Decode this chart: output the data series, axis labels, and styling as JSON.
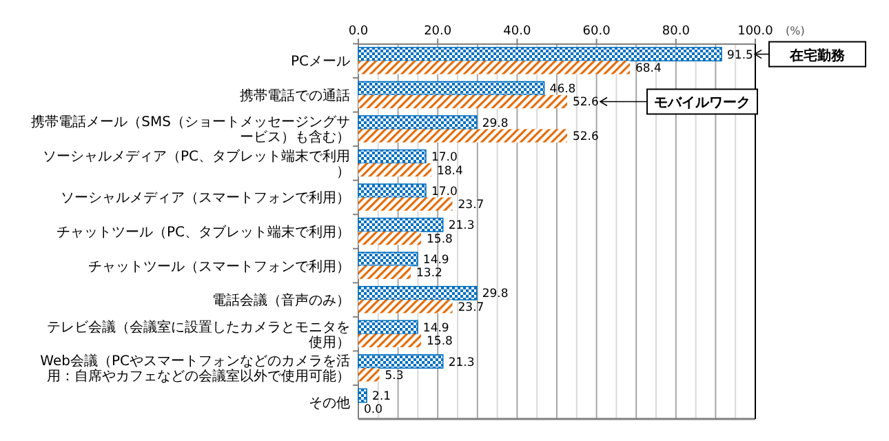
{
  "chart_data": {
    "type": "bar",
    "orientation": "horizontal",
    "xlabel": "(%)",
    "categories": [
      "PCメール",
      "携帯電話での通話",
      "携帯電話メール（SMS（ショートメッセージングサービス）も含む）",
      "ソーシャルメディア（PC、タブレット端末で利用）",
      "ソーシャルメディア（スマートフォンで利用）",
      "チャットツール（PC、タブレット端末で利用）",
      "チャットツール（スマートフォンで利用）",
      "電話会議（音声のみ）",
      "テレビ会議（会議室に設置したカメラとモニタを使用）",
      "Web会議（PCやスマートフォンなどのカメラを活用：自席やカフェなどの会議室以外で使用可能）",
      "その他"
    ],
    "series": [
      {
        "name": "在宅勤務",
        "color": "#0070c0",
        "values": [
          91.5,
          46.8,
          29.8,
          17.0,
          17.0,
          21.3,
          14.9,
          29.8,
          14.9,
          21.3,
          2.1
        ],
        "value_labels": [
          "91.5",
          "46.8",
          "29.8",
          "17.0",
          "17.0",
          "21.3",
          "14.9",
          "29.8",
          "14.9",
          "21.3",
          "2.1"
        ]
      },
      {
        "name": "モバイルワーク",
        "color": "#e46c0a",
        "values": [
          68.4,
          52.6,
          52.6,
          18.4,
          23.7,
          15.8,
          13.2,
          23.7,
          15.8,
          5.3,
          0.0
        ],
        "value_labels": [
          "68.4",
          "52.6",
          "52.6",
          "18.4",
          "23.7",
          "15.8",
          "13.2",
          "23.7",
          "15.8",
          "5.3",
          "0.0"
        ]
      }
    ],
    "xlim": [
      0,
      100
    ],
    "xticks": [
      {
        "value": 0,
        "label": "0.0"
      },
      {
        "value": 20,
        "label": "20.0"
      },
      {
        "value": 40,
        "label": "40.0"
      },
      {
        "value": 60,
        "label": "60.0"
      },
      {
        "value": 80,
        "label": "80.0"
      },
      {
        "value": 100,
        "label": "100.0"
      }
    ],
    "grid": "x"
  }
}
